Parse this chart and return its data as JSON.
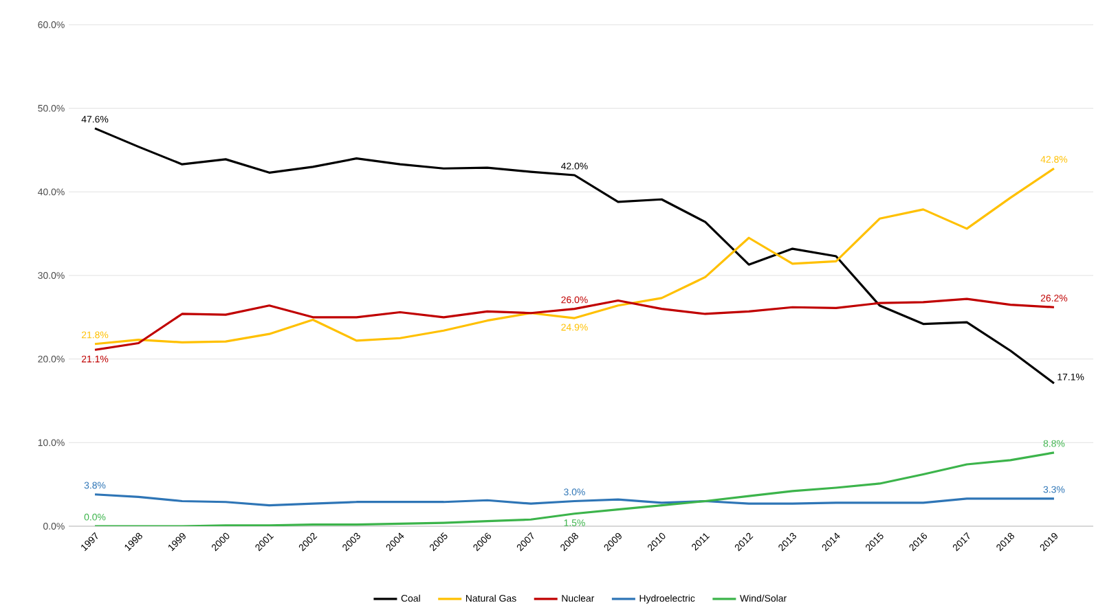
{
  "chart_data": {
    "type": "line",
    "categories": [
      "1997",
      "1998",
      "1999",
      "2000",
      "2001",
      "2002",
      "2003",
      "2004",
      "2005",
      "2006",
      "2007",
      "2008",
      "2009",
      "2010",
      "2011",
      "2012",
      "2013",
      "2014",
      "2015",
      "2016",
      "2017",
      "2018",
      "2019"
    ],
    "ylim": [
      0,
      60
    ],
    "yticks": [
      {
        "value": 0,
        "label": "0.0%"
      },
      {
        "value": 10,
        "label": "10.0%"
      },
      {
        "value": 20,
        "label": "20.0%"
      },
      {
        "value": 30,
        "label": "30.0%"
      },
      {
        "value": 40,
        "label": "40.0%"
      },
      {
        "value": 50,
        "label": "50.0%"
      },
      {
        "value": 60,
        "label": "60.0%"
      }
    ],
    "grid": "y",
    "legend": "bottom",
    "marker": "none",
    "line_style": "solid",
    "series": [
      {
        "name": "Coal",
        "color": "#000000",
        "values": [
          47.6,
          45.4,
          43.3,
          43.9,
          42.3,
          43.0,
          44.0,
          43.3,
          42.8,
          42.9,
          42.4,
          42.0,
          38.8,
          39.1,
          36.4,
          31.3,
          33.2,
          32.3,
          26.4,
          24.2,
          24.4,
          21.0,
          17.1
        ],
        "value_labels": [
          "47.6%",
          null,
          null,
          null,
          null,
          null,
          null,
          null,
          null,
          null,
          null,
          "42.0%",
          null,
          null,
          null,
          null,
          null,
          null,
          null,
          null,
          null,
          null,
          "17.1%"
        ]
      },
      {
        "name": "Natural Gas",
        "color": "#ffc000",
        "values": [
          21.8,
          22.3,
          22.0,
          22.1,
          23.0,
          24.7,
          22.2,
          22.5,
          23.4,
          24.6,
          25.5,
          24.9,
          26.4,
          27.3,
          29.8,
          34.5,
          31.4,
          31.7,
          36.8,
          37.9,
          35.6,
          39.3,
          42.8
        ],
        "value_labels": [
          "21.8%",
          null,
          null,
          null,
          null,
          null,
          null,
          null,
          null,
          null,
          null,
          "24.9%",
          null,
          null,
          null,
          null,
          null,
          null,
          null,
          null,
          null,
          null,
          "42.8%"
        ]
      },
      {
        "name": "Nuclear",
        "color": "#c00000",
        "values": [
          21.1,
          21.9,
          25.4,
          25.3,
          26.4,
          25.0,
          25.0,
          25.6,
          25.0,
          25.7,
          25.5,
          26.0,
          27.0,
          26.0,
          25.4,
          25.7,
          26.2,
          26.1,
          26.7,
          26.8,
          27.2,
          26.5,
          26.2
        ],
        "value_labels": [
          "21.1%",
          null,
          null,
          null,
          null,
          null,
          null,
          null,
          null,
          null,
          null,
          "26.0%",
          null,
          null,
          null,
          null,
          null,
          null,
          null,
          null,
          null,
          null,
          "26.2%"
        ]
      },
      {
        "name": "Hydroelectric",
        "color": "#2e75b6",
        "values": [
          3.8,
          3.5,
          3.0,
          2.9,
          2.5,
          2.7,
          2.9,
          2.9,
          2.9,
          3.1,
          2.7,
          3.0,
          3.2,
          2.8,
          3.0,
          2.7,
          2.7,
          2.8,
          2.8,
          2.8,
          3.3,
          3.3,
          3.3
        ],
        "value_labels": [
          "3.8%",
          null,
          null,
          null,
          null,
          null,
          null,
          null,
          null,
          null,
          null,
          "3.0%",
          null,
          null,
          null,
          null,
          null,
          null,
          null,
          null,
          null,
          null,
          "3.3%"
        ]
      },
      {
        "name": "Wind/Solar",
        "color": "#3cb44b",
        "values": [
          0.0,
          0.0,
          0.0,
          0.1,
          0.1,
          0.2,
          0.2,
          0.3,
          0.4,
          0.6,
          0.8,
          1.5,
          2.0,
          2.5,
          3.0,
          3.6,
          4.2,
          4.6,
          5.1,
          6.2,
          7.4,
          7.9,
          8.8
        ],
        "value_labels": [
          "0.0%",
          null,
          null,
          null,
          null,
          null,
          null,
          null,
          null,
          null,
          null,
          "1.5%",
          null,
          null,
          null,
          null,
          null,
          null,
          null,
          null,
          null,
          null,
          "8.8%"
        ]
      }
    ]
  }
}
